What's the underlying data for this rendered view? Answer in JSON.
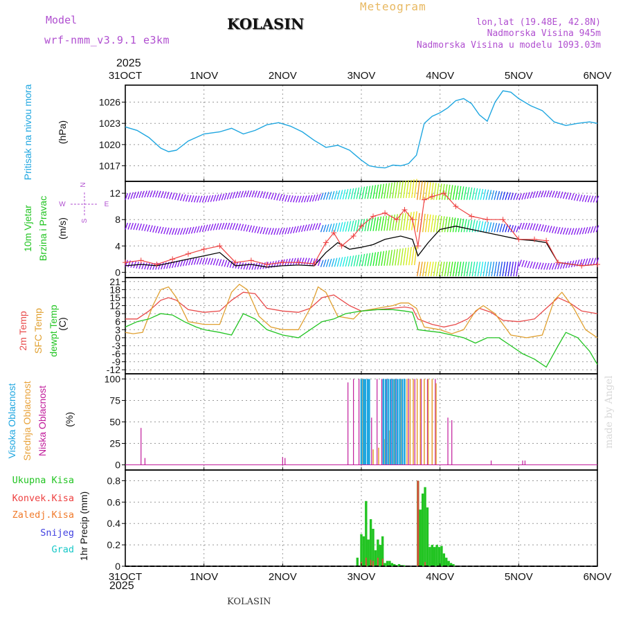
{
  "header": {
    "model_label": "Model",
    "model_name": "wrf-nmm_v3.9.1 e3km",
    "meteogram_label": "Meteogram",
    "station": "KOLASIN",
    "lonlat": "lon,lat (19.48E, 42.8N)",
    "elevation": "Nadmorska Visina 945m",
    "model_elevation": "Nadmorska Visina u modelu 1093.03m",
    "year": "2025",
    "footer_station": "KOLASIN",
    "credit": "made by Angel"
  },
  "time_axis": {
    "labels": [
      "31OCT",
      "1NOV",
      "2NOV",
      "3NOV",
      "4NOV",
      "5NOV",
      "6NOV"
    ],
    "year": "2025",
    "range_days": [
      0,
      6
    ]
  },
  "wind_compass": {
    "n": "N",
    "s": "S",
    "e": "E",
    "w": "W"
  },
  "colors": {
    "pressure": "#1ea6e0",
    "wind_speed": "#000000",
    "wind_gust": "#ee4040",
    "temp2m": "#e84a4a",
    "sfc_temp": "#e0a030",
    "dewpt": "#22c422",
    "cloud_high": "#1ea6e0",
    "cloud_mid": "#e8a23a",
    "cloud_low": "#c01a9a",
    "precip_total": "#22c422",
    "precip_conv": "#ee4040",
    "precip_frozen": "#f07a2a",
    "snow": "#4040e0",
    "hail": "#18c8c8"
  },
  "chart_data": [
    {
      "type": "line",
      "panel": "pressure",
      "ylabel_title": "Pritisak na nivou mora",
      "ylabel_units": "(hPa)",
      "yticks": [
        1017,
        1020,
        1023,
        1026
      ],
      "ylim": [
        1014.8,
        1028.4
      ],
      "series": [
        {
          "name": "MSLP",
          "x": [
            0,
            0.15,
            0.3,
            0.45,
            0.55,
            0.65,
            0.8,
            1.0,
            1.2,
            1.35,
            1.5,
            1.65,
            1.8,
            1.95,
            2.1,
            2.25,
            2.4,
            2.55,
            2.7,
            2.85,
            3.0,
            3.1,
            3.2,
            3.3,
            3.4,
            3.5,
            3.6,
            3.7,
            3.8,
            3.9,
            4.0,
            4.1,
            4.2,
            4.3,
            4.4,
            4.5,
            4.6,
            4.7,
            4.8,
            4.9,
            5.0,
            5.15,
            5.3,
            5.45,
            5.6,
            5.75,
            5.9,
            6.0
          ],
          "values": [
            1022.5,
            1022.0,
            1021.0,
            1019.5,
            1019.0,
            1019.2,
            1020.5,
            1021.5,
            1021.8,
            1022.3,
            1021.5,
            1022.0,
            1022.8,
            1023.1,
            1022.6,
            1021.8,
            1020.6,
            1019.6,
            1019.9,
            1019.2,
            1017.8,
            1017.0,
            1016.8,
            1016.7,
            1017.1,
            1017.0,
            1017.3,
            1018.5,
            1023.0,
            1024.0,
            1024.5,
            1025.2,
            1026.2,
            1026.5,
            1025.8,
            1024.2,
            1023.3,
            1026.0,
            1027.6,
            1027.4,
            1026.5,
            1025.5,
            1024.8,
            1023.2,
            1022.7,
            1023.0,
            1023.2,
            1023.0
          ]
        }
      ]
    },
    {
      "type": "line",
      "panel": "wind",
      "ylabel_title": "10m Vjetar",
      "ylabel_title2": "Brzina i Pravac",
      "ylabel_units": "(m/s)",
      "yticks": [
        0,
        4,
        8,
        12
      ],
      "ylim": [
        -0.8,
        13.8
      ],
      "series": [
        {
          "name": "wind speed",
          "x": [
            0,
            0.2,
            0.4,
            0.6,
            0.8,
            1.0,
            1.2,
            1.4,
            1.6,
            1.8,
            2.0,
            2.2,
            2.4,
            2.55,
            2.7,
            2.85,
            3.0,
            3.15,
            3.3,
            3.5,
            3.65,
            3.72,
            3.85,
            4.0,
            4.2,
            4.4,
            4.6,
            4.8,
            5.0,
            5.2,
            5.35,
            5.5,
            5.8,
            6.0
          ],
          "values": [
            1.0,
            1.2,
            1.0,
            1.5,
            2.0,
            2.5,
            3.0,
            1.0,
            1.2,
            0.8,
            1.0,
            1.1,
            1.0,
            3.0,
            4.5,
            3.5,
            3.8,
            4.2,
            5.0,
            5.5,
            5.0,
            2.5,
            4.5,
            6.5,
            7.0,
            6.5,
            6.0,
            5.5,
            5.0,
            4.8,
            4.5,
            1.5,
            1.0,
            1.2
          ]
        },
        {
          "name": "wind gust",
          "x": [
            0,
            0.2,
            0.4,
            0.6,
            0.8,
            1.0,
            1.2,
            1.4,
            1.6,
            1.8,
            2.0,
            2.2,
            2.4,
            2.55,
            2.65,
            2.75,
            2.9,
            3.0,
            3.15,
            3.3,
            3.45,
            3.55,
            3.65,
            3.72,
            3.8,
            3.9,
            4.05,
            4.2,
            4.4,
            4.6,
            4.8,
            5.0,
            5.2,
            5.35,
            5.5,
            5.8,
            6.0
          ],
          "values": [
            1.5,
            1.8,
            1.2,
            2.0,
            2.8,
            3.5,
            4.0,
            1.5,
            1.8,
            1.2,
            1.5,
            1.5,
            1.3,
            4.5,
            6.0,
            4.0,
            5.5,
            7.0,
            8.5,
            9.0,
            8.0,
            9.5,
            8.0,
            4.0,
            11.0,
            11.5,
            12.0,
            10.0,
            8.5,
            8.0,
            8.0,
            5.0,
            5.0,
            4.8,
            1.5,
            1.0,
            1.2
          ]
        }
      ]
    },
    {
      "type": "line",
      "panel": "temperature",
      "ylabel_title": "2m Temp",
      "ylabel_title2": "SFC Temp",
      "ylabel_title3": "dewpt Temp",
      "ylabel_units": "(C)",
      "yticks": [
        -12,
        -9,
        -6,
        -3,
        0,
        3,
        6,
        9,
        12,
        15,
        18,
        21
      ],
      "ylim": [
        -13.5,
        22.5
      ],
      "series": [
        {
          "name": "2m Temp",
          "x": [
            0,
            0.15,
            0.3,
            0.45,
            0.55,
            0.65,
            0.8,
            1.0,
            1.2,
            1.35,
            1.5,
            1.65,
            1.8,
            2.0,
            2.2,
            2.35,
            2.5,
            2.65,
            2.85,
            3.0,
            3.2,
            3.4,
            3.55,
            3.65,
            3.72,
            3.9,
            4.05,
            4.2,
            4.35,
            4.5,
            4.65,
            4.8,
            5.0,
            5.2,
            5.35,
            5.5,
            5.65,
            5.8,
            6.0
          ],
          "values": [
            7,
            7,
            10,
            14,
            15,
            14,
            10.5,
            9.5,
            10,
            14,
            17,
            16.5,
            11,
            10,
            9.5,
            11,
            15,
            16,
            12,
            10,
            10.5,
            11,
            11.5,
            11,
            7,
            5,
            4,
            5,
            7,
            11,
            9.5,
            6.5,
            6,
            7,
            11,
            15,
            13,
            10,
            9
          ]
        },
        {
          "name": "SFC Temp",
          "x": [
            0,
            0.1,
            0.22,
            0.35,
            0.45,
            0.55,
            0.65,
            0.8,
            1.0,
            1.2,
            1.35,
            1.45,
            1.55,
            1.7,
            1.85,
            2.0,
            2.2,
            2.35,
            2.45,
            2.55,
            2.7,
            2.9,
            3.0,
            3.2,
            3.4,
            3.5,
            3.6,
            3.7,
            3.8,
            4.0,
            4.15,
            4.3,
            4.45,
            4.55,
            4.7,
            4.9,
            5.1,
            5.3,
            5.45,
            5.55,
            5.7,
            5.85,
            6.0
          ],
          "values": [
            2,
            1.5,
            2,
            12,
            18,
            19,
            15,
            6,
            5,
            5,
            17,
            20,
            18,
            8,
            4,
            3,
            3,
            11,
            19,
            17,
            8,
            7,
            10,
            11,
            12,
            13,
            13,
            11,
            4,
            3,
            1.5,
            3,
            10,
            12,
            9,
            1,
            0,
            1,
            14,
            17,
            11,
            3,
            0
          ]
        },
        {
          "name": "dewpt Temp",
          "x": [
            0,
            0.15,
            0.3,
            0.45,
            0.6,
            0.75,
            0.9,
            1.0,
            1.2,
            1.35,
            1.5,
            1.65,
            1.8,
            2.0,
            2.2,
            2.35,
            2.5,
            2.65,
            2.8,
            3.0,
            3.2,
            3.4,
            3.55,
            3.65,
            3.72,
            3.85,
            4.0,
            4.15,
            4.3,
            4.45,
            4.6,
            4.75,
            4.9,
            5.05,
            5.2,
            5.35,
            5.5,
            5.6,
            5.75,
            5.9,
            6.0
          ],
          "values": [
            4,
            6,
            7,
            9,
            8.5,
            6,
            4,
            3,
            2,
            1,
            9,
            7,
            3,
            1,
            0,
            3,
            6,
            7,
            9,
            10,
            10.5,
            10.5,
            10,
            9.5,
            3,
            2.5,
            2,
            1,
            0,
            -2,
            0,
            0,
            -3,
            -6,
            -8,
            -11,
            -3,
            2,
            0,
            -5,
            -10
          ]
        }
      ]
    },
    {
      "type": "bar",
      "panel": "cloud",
      "ylabel_title": "Visoka Oblacnost",
      "ylabel_title2": "Srednja Oblacnost",
      "ylabel_title3": "Niska Oblacnost",
      "ylabel_units": "(%)",
      "yticks": [
        0,
        25,
        50,
        75,
        100
      ],
      "ylim": [
        -6,
        106
      ],
      "series": [
        {
          "name": "Niska",
          "x": [
            0.2,
            0.25,
            2.0,
            2.03,
            2.83,
            2.9,
            2.97,
            3.04,
            3.13,
            3.2,
            3.26,
            3.32,
            3.38,
            3.45,
            3.52,
            3.6,
            3.68,
            3.76,
            3.84,
            3.94,
            4.1,
            4.15,
            4.65,
            5.05,
            5.08
          ],
          "values": [
            43,
            8,
            9,
            8,
            96,
            100,
            100,
            100,
            55,
            100,
            100,
            100,
            100,
            100,
            100,
            100,
            100,
            100,
            100,
            100,
            55,
            52,
            5,
            5,
            5
          ]
        },
        {
          "name": "Srednja",
          "x": [
            3.02,
            3.08,
            3.15,
            3.22,
            3.3,
            3.36,
            3.42,
            3.5,
            3.58,
            3.62,
            3.66,
            3.71,
            3.75,
            3.8,
            3.85,
            3.9,
            3.95
          ],
          "values": [
            100,
            60,
            18,
            20,
            30,
            40,
            100,
            100,
            100,
            100,
            100,
            100,
            100,
            100,
            100,
            100,
            95
          ]
        },
        {
          "name": "Visoka",
          "x": [
            3.0,
            3.03,
            3.05,
            3.08,
            3.1,
            3.28,
            3.31,
            3.34,
            3.37,
            3.4,
            3.43,
            3.46,
            3.49,
            3.52,
            3.55
          ],
          "values": [
            100,
            100,
            100,
            100,
            100,
            100,
            100,
            100,
            100,
            100,
            100,
            100,
            100,
            100,
            100
          ]
        }
      ]
    },
    {
      "type": "bar",
      "panel": "precip",
      "ylabel_units": "1hr Precip (mm)",
      "legend": [
        "Ukupna Kisa",
        "Konvek.Kisa",
        "Zaledj.Kisa",
        "Snijeg",
        "Grad"
      ],
      "yticks": [
        0,
        0.2,
        0.4,
        0.6,
        0.8
      ],
      "ylim": [
        0,
        0.9
      ],
      "series": [
        {
          "name": "Ukupna Kisa",
          "x": [
            2.95,
            3.0,
            3.03,
            3.06,
            3.09,
            3.12,
            3.15,
            3.18,
            3.21,
            3.24,
            3.27,
            3.3,
            3.33,
            3.36,
            3.39,
            3.42,
            3.45,
            3.48,
            3.51,
            3.54,
            3.72,
            3.75,
            3.78,
            3.81,
            3.84,
            3.87,
            3.9,
            3.93,
            3.96,
            3.99,
            4.02,
            4.05,
            4.08,
            4.11,
            4.14,
            4.17
          ],
          "values": [
            0.08,
            0.3,
            0.28,
            0.61,
            0.25,
            0.44,
            0.35,
            0.15,
            0.25,
            0.2,
            0.28,
            0.03,
            0.05,
            0.05,
            0.03,
            0.02,
            0.01,
            0.02,
            0.01,
            0.01,
            0.8,
            0.53,
            0.68,
            0.74,
            0.55,
            0.18,
            0.2,
            0.18,
            0.2,
            0.18,
            0.19,
            0.12,
            0.08,
            0.05,
            0.03,
            0.02
          ]
        },
        {
          "name": "Konvek.Kisa",
          "x": [
            3.0,
            3.06,
            3.12,
            3.15,
            3.21,
            3.27,
            3.72,
            3.81
          ],
          "values": [
            0.04,
            0.08,
            0.06,
            0.05,
            0.08,
            0.07,
            0.8,
            0.04
          ]
        }
      ]
    }
  ]
}
